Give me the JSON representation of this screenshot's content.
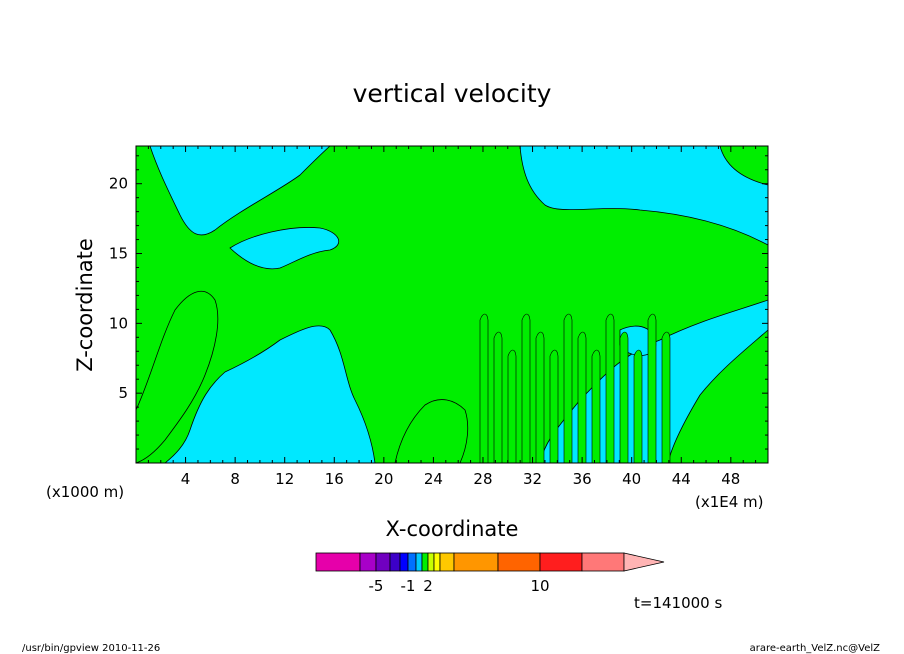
{
  "chart_data": {
    "type": "heatmap",
    "title": "vertical velocity",
    "xlabel": "X-coordinate",
    "ylabel": "Z-coordinate",
    "x_unit_note": "(x1000 m)",
    "x_unit_note_right": "(x1E4 m)",
    "x_ticks": [
      "4",
      "8",
      "12",
      "16",
      "20",
      "24",
      "28",
      "32",
      "36",
      "40",
      "44",
      "48"
    ],
    "x_tick_values": [
      4,
      8,
      12,
      16,
      20,
      24,
      28,
      32,
      36,
      40,
      44,
      48
    ],
    "y_ticks": [
      "5",
      "10",
      "15",
      "20"
    ],
    "y_tick_values": [
      5,
      10,
      15,
      20
    ],
    "xlim": [
      0,
      51
    ],
    "ylim": [
      0,
      22.7
    ],
    "field_colors": {
      "negative": "#00e8ff",
      "positive": "#00ee00"
    },
    "colorbar": {
      "colors": [
        "#e600aa",
        "#a800c8",
        "#7000c0",
        "#3c00c8",
        "#0000ff",
        "#0070ff",
        "#00c8ff",
        "#00ee00",
        "#c8ff00",
        "#ffff00",
        "#ffc800",
        "#ff9600",
        "#ff6400",
        "#ff1e1e",
        "#ff7878",
        "#ffb4b4"
      ],
      "labels": [
        "-5",
        "-1",
        "2",
        "10"
      ],
      "label_bins": [
        1,
        4,
        7,
        12
      ]
    },
    "time_label": "t=141000 s"
  },
  "footer": {
    "left": "/usr/bin/gpview   2010-11-26",
    "right": "arare-earth_VelZ.nc@VelZ"
  }
}
